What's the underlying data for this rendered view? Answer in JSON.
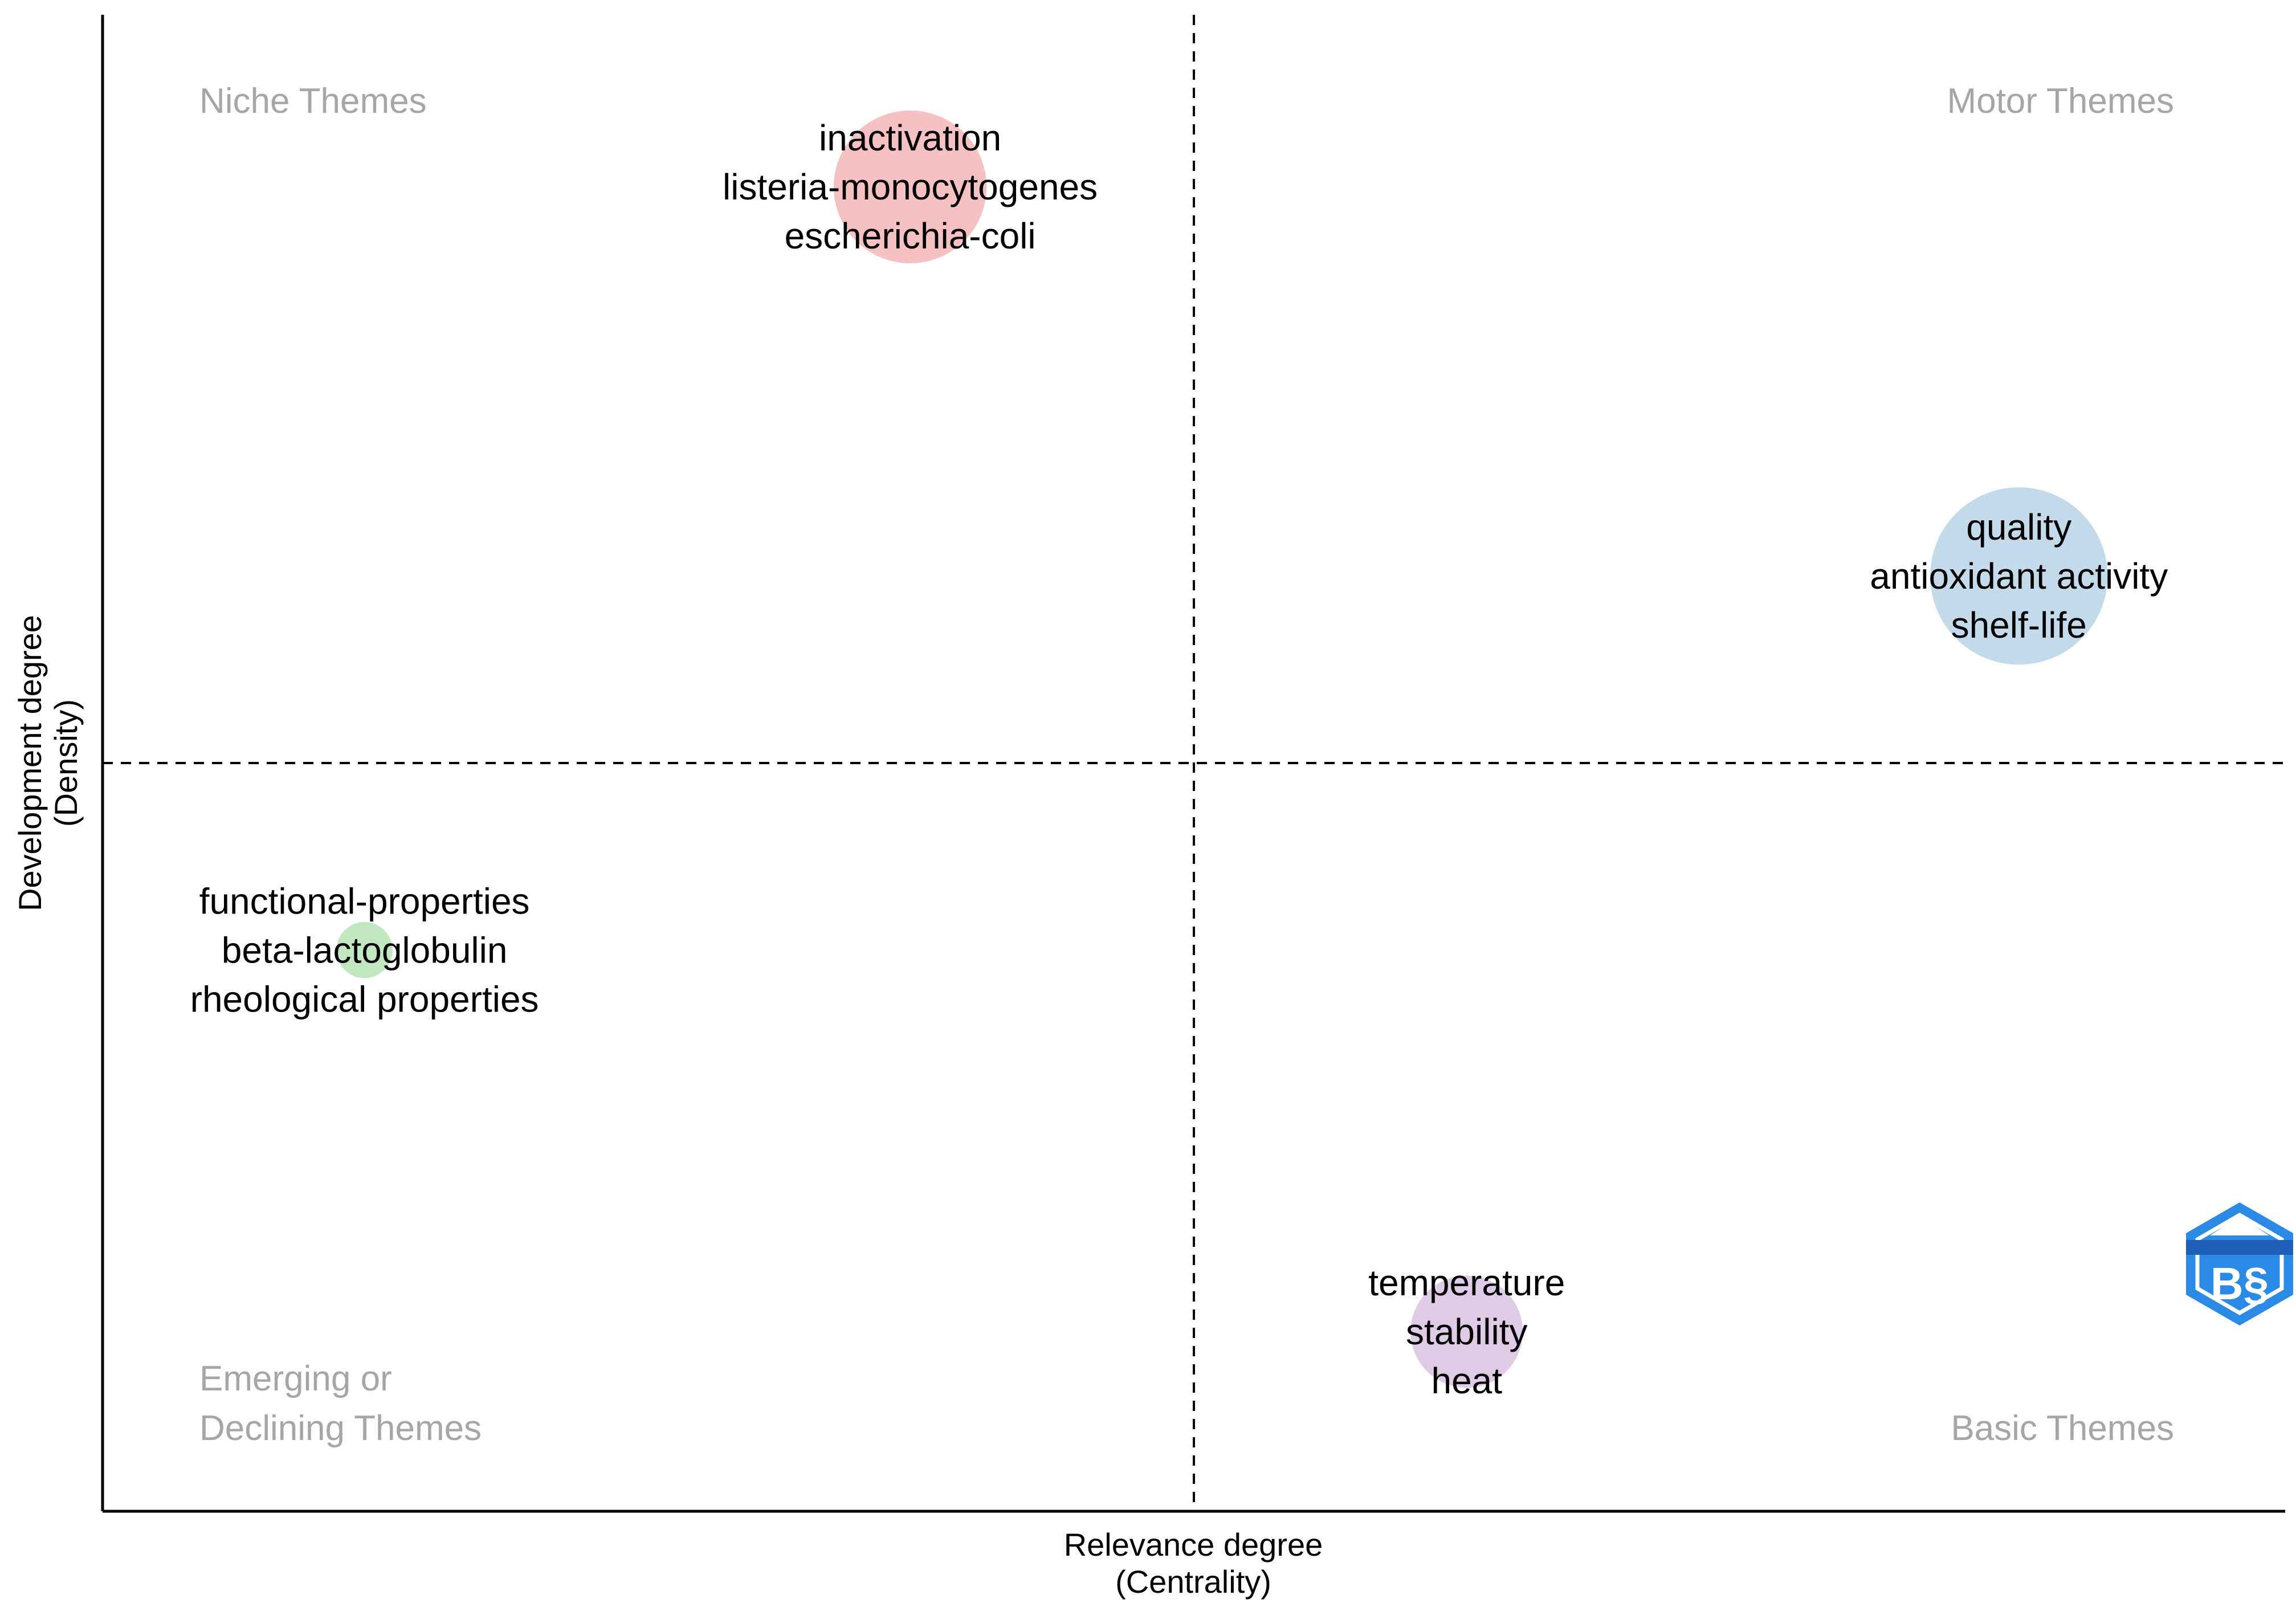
{
  "chart_data": {
    "type": "scatter",
    "subtype": "bubble",
    "title": "",
    "xlabel": "Relevance degree",
    "xlabel_sub": "(Centrality)",
    "ylabel": "Development degree",
    "ylabel_sub": "(Density)",
    "xlim": [
      0,
      1
    ],
    "ylim": [
      0,
      1
    ],
    "x_divider": 0.5,
    "y_divider": 0.5,
    "grid": false,
    "quadrants": {
      "top_left": [
        "Niche Themes"
      ],
      "top_right": [
        "Motor Themes"
      ],
      "bottom_left": [
        "Emerging or",
        "Declining Themes"
      ],
      "bottom_right": [
        "Basic Themes"
      ]
    },
    "points": [
      {
        "name": "cluster-inactivation",
        "x": 0.37,
        "y": 0.885,
        "size": 0.52,
        "color": "#f4b6b9",
        "labels": [
          "inactivation",
          "listeria-monocytogenes",
          "escherichia-coli"
        ]
      },
      {
        "name": "cluster-quality",
        "x": 0.878,
        "y": 0.625,
        "size": 0.7,
        "color": "#b9d3e8",
        "labels": [
          "quality",
          "antioxidant activity",
          "shelf-life"
        ]
      },
      {
        "name": "cluster-functional-properties",
        "x": 0.12,
        "y": 0.375,
        "size": 0.07,
        "color": "#b7e3b5",
        "labels": [
          "functional-properties",
          "beta-lactoglobulin",
          "rheological properties"
        ]
      },
      {
        "name": "cluster-temperature",
        "x": 0.625,
        "y": 0.12,
        "size": 0.28,
        "color": "#d9c2e0",
        "labels": [
          "temperature",
          "stability",
          "heat"
        ]
      }
    ],
    "colors": {
      "axis": "#000000",
      "divider": "#000000",
      "quadrant_label": "#a6a6a6",
      "point_label": "#000000",
      "logo_primary": "#2b8ae6",
      "logo_dark": "#1d5fb8"
    },
    "logo": {
      "name": "bibliometrix-logo"
    }
  }
}
